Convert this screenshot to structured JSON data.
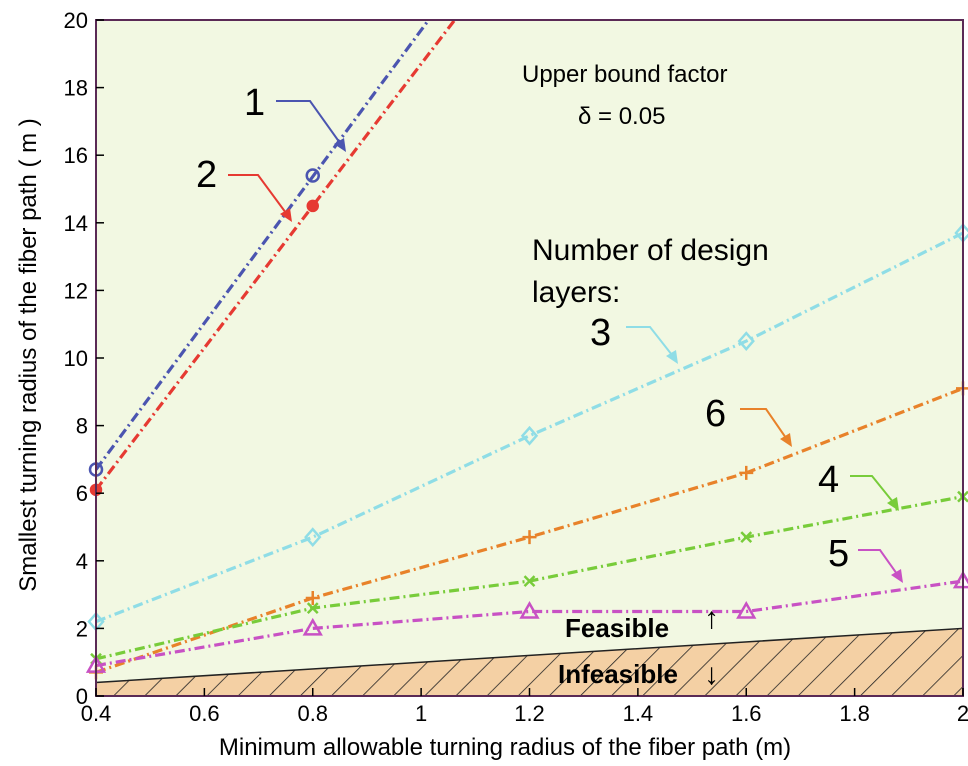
{
  "chart_data": {
    "type": "line",
    "xlabel": "Minimum allowable turning radius of the fiber path (m)",
    "ylabel": "Smallest turning radius of the fiber path ( m )",
    "xlim": [
      0.4,
      2.0
    ],
    "ylim": [
      0,
      20
    ],
    "xticks": [
      "0.4",
      "0.6",
      "0.8",
      "1",
      "1.2",
      "1.4",
      "1.6",
      "1.8",
      "2"
    ],
    "yticks": [
      "0",
      "2",
      "4",
      "6",
      "8",
      "10",
      "12",
      "14",
      "16",
      "18",
      "20"
    ],
    "grid": false,
    "annotation_title": "Upper bound factor",
    "annotation_delta": "δ = 0.05",
    "layers_label_line1": "Number of design",
    "layers_label_line2": "layers:",
    "feasible_label": "Feasible",
    "infeasible_label": "Infeasible",
    "feasible_arrow": "↑",
    "infeasible_arrow": "↓",
    "boundary": {
      "x": [
        0.4,
        2.0
      ],
      "y": [
        0.4,
        2.0
      ]
    },
    "series": [
      {
        "name": "1",
        "color": "#4b55b0",
        "marker": "circle",
        "x": [
          0.4,
          0.8
        ],
        "y": [
          6.7,
          15.4
        ],
        "line_x": [
          0.4,
          1.3
        ],
        "line_y": [
          6.7,
          26.2
        ]
      },
      {
        "name": "2",
        "color": "#e63a32",
        "marker": "star",
        "x": [
          0.4,
          0.8
        ],
        "y": [
          6.1,
          14.5
        ],
        "line_x": [
          0.4,
          1.3
        ],
        "line_y": [
          6.1,
          25.0
        ]
      },
      {
        "name": "3",
        "color": "#8fdde6",
        "marker": "diamond",
        "x": [
          0.4,
          0.8,
          1.2,
          1.6,
          2.0
        ],
        "y": [
          2.2,
          4.7,
          7.7,
          10.5,
          13.7
        ]
      },
      {
        "name": "6",
        "color": "#e8822a",
        "marker": "plus",
        "x": [
          0.4,
          0.8,
          1.2,
          1.6,
          2.0
        ],
        "y": [
          0.7,
          2.9,
          4.7,
          6.6,
          9.1
        ]
      },
      {
        "name": "4",
        "color": "#78cc3a",
        "marker": "x",
        "x": [
          0.4,
          0.8,
          1.2,
          1.6,
          2.0
        ],
        "y": [
          1.1,
          2.6,
          3.4,
          4.7,
          5.9
        ]
      },
      {
        "name": "5",
        "color": "#c851c4",
        "marker": "triangle",
        "x": [
          0.4,
          0.8,
          1.2,
          1.6,
          2.0
        ],
        "y": [
          0.9,
          2.0,
          2.5,
          2.5,
          3.4
        ]
      }
    ]
  }
}
